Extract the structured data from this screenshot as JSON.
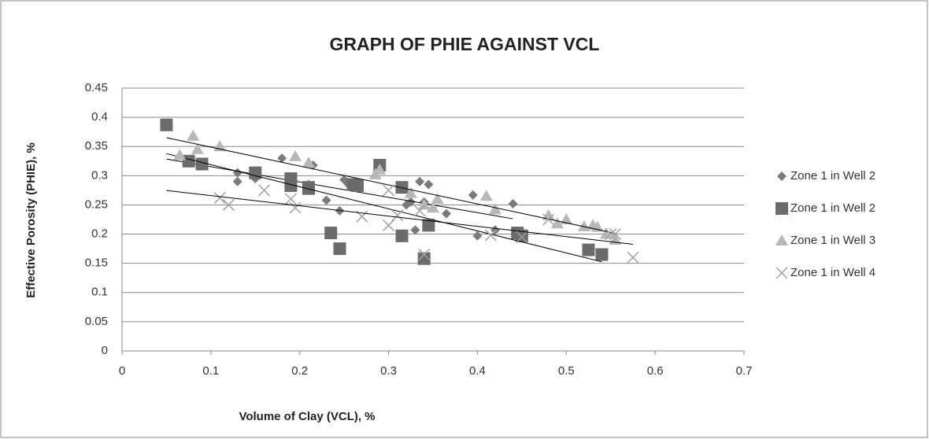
{
  "chart_data": {
    "type": "scatter",
    "title": "GRAPH OF PHIE AGAINST VCL",
    "x_label": "Volume of Clay (VCL), %",
    "y_label": "Effective Porosity (PHIE), %",
    "xlim": [
      0,
      0.7
    ],
    "xticks": [
      0,
      0.1,
      0.2,
      0.3,
      0.4,
      0.5,
      0.6,
      0.7
    ],
    "ylim": [
      0,
      0.45
    ],
    "yticks": [
      0,
      0.05,
      0.1,
      0.15,
      0.2,
      0.25,
      0.3,
      0.35,
      0.4,
      0.45
    ],
    "grid": true,
    "trendline": true,
    "legend": "right",
    "series": [
      {
        "name": "Zone 1 in Well 2",
        "color": "#7a7a7a",
        "marker": "diamond",
        "x": [
          0.13,
          0.13,
          0.15,
          0.18,
          0.215,
          0.21,
          0.23,
          0.245,
          0.25,
          0.255,
          0.32,
          0.325,
          0.33,
          0.335,
          0.34,
          0.345,
          0.365,
          0.395,
          0.4,
          0.42,
          0.44
        ],
        "values": [
          0.305,
          0.29,
          0.295,
          0.33,
          0.318,
          0.285,
          0.258,
          0.24,
          0.293,
          0.285,
          0.25,
          0.255,
          0.207,
          0.29,
          0.255,
          0.285,
          0.235,
          0.267,
          0.197,
          0.207,
          0.252
        ]
      },
      {
        "name": "Zone 1 in Well 2",
        "color": "#6b6b6b",
        "marker": "square",
        "x": [
          0.05,
          0.075,
          0.09,
          0.15,
          0.19,
          0.19,
          0.21,
          0.21,
          0.235,
          0.245,
          0.26,
          0.265,
          0.29,
          0.315,
          0.315,
          0.34,
          0.345,
          0.445,
          0.45,
          0.525,
          0.54
        ],
        "values": [
          0.387,
          0.325,
          0.32,
          0.305,
          0.295,
          0.283,
          0.28,
          0.278,
          0.202,
          0.175,
          0.285,
          0.283,
          0.318,
          0.197,
          0.28,
          0.158,
          0.215,
          0.202,
          0.197,
          0.173,
          0.165
        ]
      },
      {
        "name": "Zone 1 in Well 3",
        "color": "#b8b8b8",
        "marker": "triangle",
        "x": [
          0.065,
          0.08,
          0.085,
          0.11,
          0.195,
          0.21,
          0.285,
          0.29,
          0.325,
          0.34,
          0.35,
          0.355,
          0.41,
          0.42,
          0.48,
          0.49,
          0.5,
          0.52,
          0.53,
          0.535,
          0.545,
          0.555
        ],
        "values": [
          0.335,
          0.368,
          0.345,
          0.35,
          0.333,
          0.322,
          0.302,
          0.31,
          0.27,
          0.25,
          0.245,
          0.26,
          0.265,
          0.242,
          0.232,
          0.218,
          0.225,
          0.213,
          0.215,
          0.212,
          0.2,
          0.19
        ]
      },
      {
        "name": "Zone 1 in Well 4",
        "color": "#a0a0a0",
        "marker": "cross",
        "x": [
          0.11,
          0.12,
          0.16,
          0.195,
          0.19,
          0.27,
          0.3,
          0.3,
          0.31,
          0.335,
          0.34,
          0.415,
          0.45,
          0.48,
          0.55,
          0.555,
          0.575
        ],
        "values": [
          0.262,
          0.25,
          0.275,
          0.245,
          0.26,
          0.23,
          0.275,
          0.215,
          0.232,
          0.24,
          0.165,
          0.198,
          0.195,
          0.225,
          0.2,
          0.2,
          0.16
        ]
      }
    ]
  }
}
